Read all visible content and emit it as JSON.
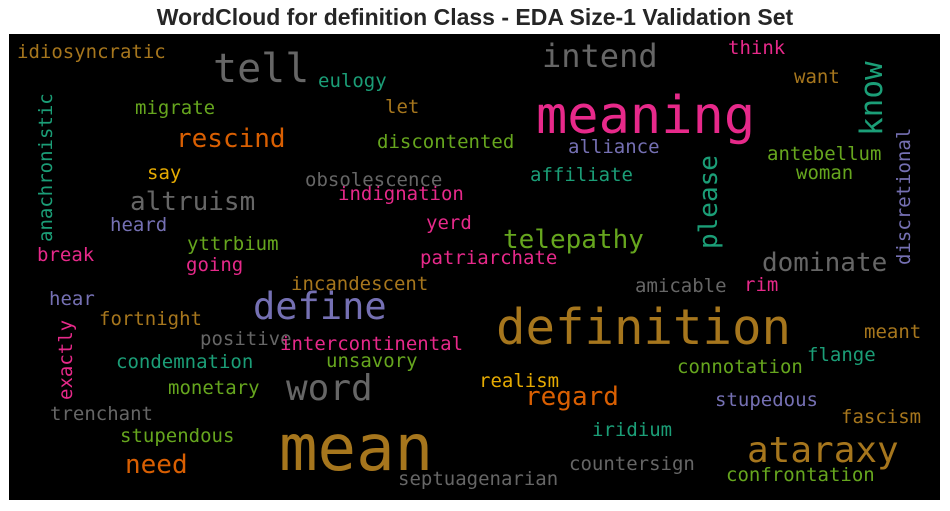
{
  "chart_data": {
    "type": "wordcloud",
    "title": "WordCloud for definition Class - EDA Size-1 Validation Set",
    "colors": {
      "pink": "#e7298a",
      "orange": "#d95f02",
      "teal": "#1b9e77",
      "purple": "#7570b3",
      "green": "#66a61e",
      "yellow": "#e6ab02",
      "brown": "#a6761d",
      "gray": "#666666"
    },
    "words": [
      {
        "id": "meaning",
        "text": "meaning",
        "color": "pink"
      },
      {
        "id": "mean",
        "text": "mean",
        "color": "brown"
      },
      {
        "id": "definition",
        "text": "definition",
        "color": "brown"
      },
      {
        "id": "tell",
        "text": "tell",
        "color": "gray"
      },
      {
        "id": "word",
        "text": "word",
        "color": "gray"
      },
      {
        "id": "define",
        "text": "define",
        "color": "purple"
      },
      {
        "id": "ataraxy",
        "text": "ataraxy",
        "color": "brown"
      },
      {
        "id": "know",
        "text": "know",
        "color": "teal"
      },
      {
        "id": "intend",
        "text": "intend",
        "color": "gray"
      },
      {
        "id": "please",
        "text": "please",
        "color": "teal"
      },
      {
        "id": "dominate",
        "text": "dominate",
        "color": "gray"
      },
      {
        "id": "telepathy",
        "text": "telepathy",
        "color": "green"
      },
      {
        "id": "altruism",
        "text": "altruism",
        "color": "gray"
      },
      {
        "id": "rescind",
        "text": "rescind",
        "color": "orange"
      },
      {
        "id": "regard",
        "text": "regard",
        "color": "orange"
      },
      {
        "id": "need",
        "text": "need",
        "color": "orange"
      },
      {
        "id": "idiosyncratic",
        "text": "idiosyncratic",
        "color": "brown"
      },
      {
        "id": "eulogy",
        "text": "eulogy",
        "color": "teal"
      },
      {
        "id": "let",
        "text": "let",
        "color": "brown"
      },
      {
        "id": "think",
        "text": "think",
        "color": "pink"
      },
      {
        "id": "want",
        "text": "want",
        "color": "brown"
      },
      {
        "id": "migrate",
        "text": "migrate",
        "color": "green"
      },
      {
        "id": "discontented",
        "text": "discontented",
        "color": "green"
      },
      {
        "id": "alliance",
        "text": "alliance",
        "color": "purple"
      },
      {
        "id": "antebellum",
        "text": "antebellum",
        "color": "green"
      },
      {
        "id": "woman",
        "text": "woman",
        "color": "green"
      },
      {
        "id": "say",
        "text": "say",
        "color": "yellow"
      },
      {
        "id": "obsolescence",
        "text": "obsolescence",
        "color": "gray"
      },
      {
        "id": "affiliate",
        "text": "affiliate",
        "color": "teal"
      },
      {
        "id": "indignation",
        "text": "indignation",
        "color": "pink"
      },
      {
        "id": "heard",
        "text": "heard",
        "color": "purple"
      },
      {
        "id": "yerd",
        "text": "yerd",
        "color": "pink"
      },
      {
        "id": "yttrbium",
        "text": "yttrbium",
        "color": "green"
      },
      {
        "id": "break",
        "text": "break",
        "color": "pink"
      },
      {
        "id": "going",
        "text": "going",
        "color": "pink"
      },
      {
        "id": "patriarchate",
        "text": "patriarchate",
        "color": "pink"
      },
      {
        "id": "incandescent",
        "text": "incandescent",
        "color": "brown"
      },
      {
        "id": "amicable",
        "text": "amicable",
        "color": "gray"
      },
      {
        "id": "rim",
        "text": "rim",
        "color": "pink"
      },
      {
        "id": "hear",
        "text": "hear",
        "color": "purple"
      },
      {
        "id": "fortnight",
        "text": "fortnight",
        "color": "brown"
      },
      {
        "id": "positive",
        "text": "positive",
        "color": "gray"
      },
      {
        "id": "intercontinental",
        "text": "intercontinental",
        "color": "pink"
      },
      {
        "id": "meant",
        "text": "meant",
        "color": "brown"
      },
      {
        "id": "condemnation",
        "text": "condemnation",
        "color": "teal"
      },
      {
        "id": "unsavory",
        "text": "unsavory",
        "color": "green"
      },
      {
        "id": "flange",
        "text": "flange",
        "color": "teal"
      },
      {
        "id": "connotation",
        "text": "connotation",
        "color": "green"
      },
      {
        "id": "monetary",
        "text": "monetary",
        "color": "green"
      },
      {
        "id": "realism",
        "text": "realism",
        "color": "yellow"
      },
      {
        "id": "stupedous",
        "text": "stupedous",
        "color": "purple"
      },
      {
        "id": "trenchant",
        "text": "trenchant",
        "color": "gray"
      },
      {
        "id": "fascism",
        "text": "fascism",
        "color": "brown"
      },
      {
        "id": "stupendous",
        "text": "stupendous",
        "color": "green"
      },
      {
        "id": "iridium",
        "text": "iridium",
        "color": "teal"
      },
      {
        "id": "countersign",
        "text": "countersign",
        "color": "gray"
      },
      {
        "id": "septuagenarian",
        "text": "septuagenarian",
        "color": "gray"
      },
      {
        "id": "confrontation",
        "text": "confrontation",
        "color": "green"
      },
      {
        "id": "anachronistic",
        "text": "anachronistic",
        "color": "teal"
      },
      {
        "id": "discretional",
        "text": "discretional",
        "color": "purple"
      },
      {
        "id": "exactly",
        "text": "exactly",
        "color": "pink"
      }
    ]
  }
}
